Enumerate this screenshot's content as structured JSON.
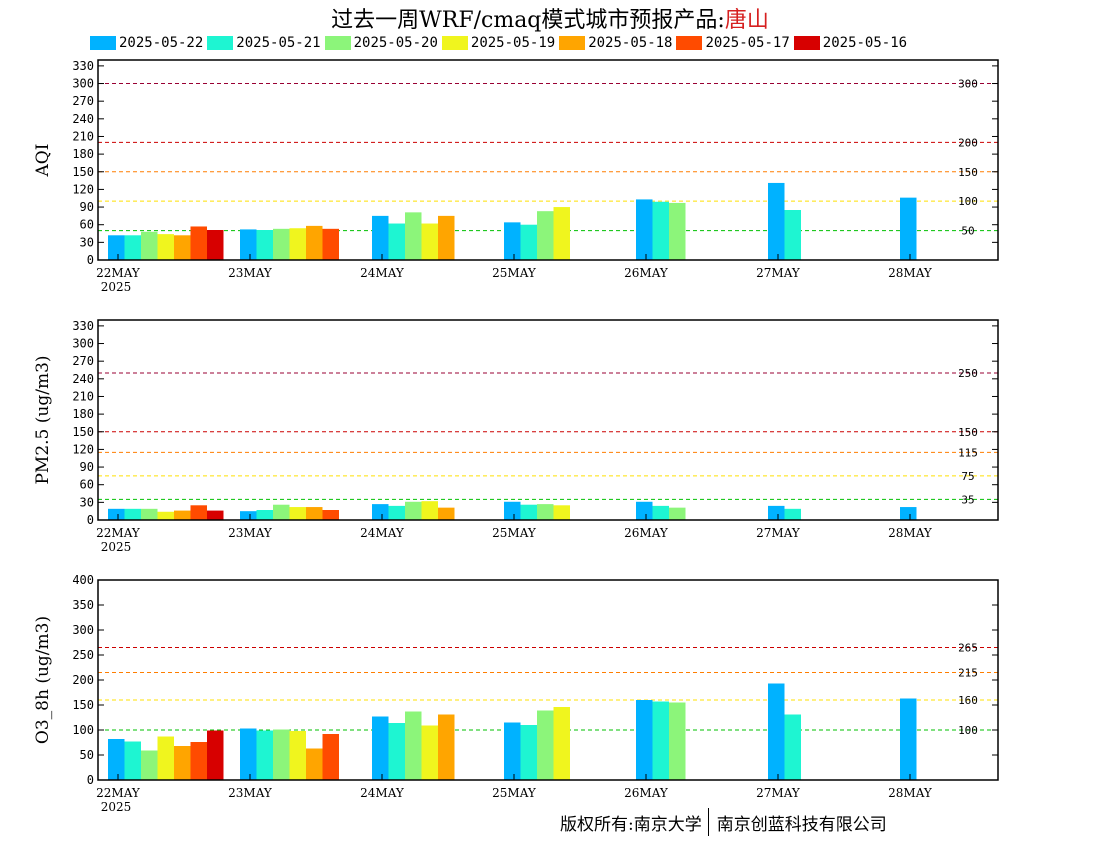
{
  "title": {
    "main": "过去一周WRF/cmaq模式城市预报产品:",
    "city": "唐山",
    "city_color": "#d62020"
  },
  "legend": [
    {
      "label": "2025-05-22",
      "color": "#00b2ff"
    },
    {
      "label": "2025-05-21",
      "color": "#1ef5d2"
    },
    {
      "label": "2025-05-20",
      "color": "#8cf57a"
    },
    {
      "label": "2025-05-19",
      "color": "#f0f51e"
    },
    {
      "label": "2025-05-18",
      "color": "#ffa500"
    },
    {
      "label": "2025-05-17",
      "color": "#ff4b00"
    },
    {
      "label": "2025-05-16",
      "color": "#d70000"
    }
  ],
  "copyright": {
    "left": "版权所有:南京大学",
    "right": "南京创蓝科技有限公司"
  },
  "chart_data": [
    {
      "type": "bar",
      "ylabel": "AQI",
      "ylim": [
        0,
        340
      ],
      "yticks": [
        0,
        30,
        60,
        90,
        120,
        150,
        180,
        210,
        240,
        270,
        300,
        330
      ],
      "categories": [
        "22MAY",
        "23MAY",
        "24MAY",
        "25MAY",
        "26MAY",
        "27MAY",
        "28MAY"
      ],
      "year_label": "2025",
      "thresholds": [
        {
          "value": 300,
          "label": "300",
          "color": "#990033"
        },
        {
          "value": 200,
          "label": "200",
          "color": "#cc0000"
        },
        {
          "value": 150,
          "label": "150",
          "color": "#ff7e00"
        },
        {
          "value": 100,
          "label": "100",
          "color": "#ffe000"
        },
        {
          "value": 50,
          "label": "50",
          "color": "#00c000"
        }
      ],
      "series": [
        {
          "name": "2025-05-22",
          "values": [
            42,
            52,
            75,
            64,
            103,
            131,
            106
          ]
        },
        {
          "name": "2025-05-21",
          "values": [
            42,
            51,
            62,
            60,
            99,
            85,
            null
          ]
        },
        {
          "name": "2025-05-20",
          "values": [
            48,
            53,
            81,
            83,
            97,
            null,
            null
          ]
        },
        {
          "name": "2025-05-19",
          "values": [
            44,
            54,
            62,
            90,
            null,
            null,
            null
          ]
        },
        {
          "name": "2025-05-18",
          "values": [
            42,
            58,
            75,
            null,
            null,
            null,
            null
          ]
        },
        {
          "name": "2025-05-17",
          "values": [
            57,
            53,
            null,
            null,
            null,
            null,
            null
          ]
        },
        {
          "name": "2025-05-16",
          "values": [
            51,
            null,
            null,
            null,
            null,
            null,
            null
          ]
        }
      ]
    },
    {
      "type": "bar",
      "ylabel": "PM2.5 (ug/m3)",
      "ylim": [
        0,
        340
      ],
      "yticks": [
        0,
        30,
        60,
        90,
        120,
        150,
        180,
        210,
        240,
        270,
        300,
        330
      ],
      "categories": [
        "22MAY",
        "23MAY",
        "24MAY",
        "25MAY",
        "26MAY",
        "27MAY",
        "28MAY"
      ],
      "year_label": "2025",
      "thresholds": [
        {
          "value": 250,
          "label": "250",
          "color": "#990033"
        },
        {
          "value": 150,
          "label": "150",
          "color": "#cc0000"
        },
        {
          "value": 115,
          "label": "115",
          "color": "#ff7e00"
        },
        {
          "value": 75,
          "label": "75",
          "color": "#ffe000"
        },
        {
          "value": 35,
          "label": "35",
          "color": "#00c000"
        }
      ],
      "series": [
        {
          "name": "2025-05-22",
          "values": [
            19,
            15,
            27,
            31,
            31,
            24,
            22
          ]
        },
        {
          "name": "2025-05-21",
          "values": [
            19,
            17,
            24,
            26,
            24,
            19,
            null
          ]
        },
        {
          "name": "2025-05-20",
          "values": [
            19,
            26,
            31,
            27,
            21,
            null,
            null
          ]
        },
        {
          "name": "2025-05-19",
          "values": [
            14,
            22,
            32,
            25,
            null,
            null,
            null
          ]
        },
        {
          "name": "2025-05-18",
          "values": [
            16,
            22,
            21,
            null,
            null,
            null,
            null
          ]
        },
        {
          "name": "2025-05-17",
          "values": [
            25,
            17,
            null,
            null,
            null,
            null,
            null
          ]
        },
        {
          "name": "2025-05-16",
          "values": [
            16,
            null,
            null,
            null,
            null,
            null,
            null
          ]
        }
      ]
    },
    {
      "type": "bar",
      "ylabel": "O3_8h (ug/m3)",
      "ylim": [
        0,
        400
      ],
      "yticks": [
        0,
        50,
        100,
        150,
        200,
        250,
        300,
        350,
        400
      ],
      "categories": [
        "22MAY",
        "23MAY",
        "24MAY",
        "25MAY",
        "26MAY",
        "27MAY",
        "28MAY"
      ],
      "year_label": "2025",
      "thresholds": [
        {
          "value": 265,
          "label": "265",
          "color": "#cc0000"
        },
        {
          "value": 215,
          "label": "215",
          "color": "#ff7e00"
        },
        {
          "value": 160,
          "label": "160",
          "color": "#ffe000"
        },
        {
          "value": 100,
          "label": "100",
          "color": "#00c000"
        }
      ],
      "series": [
        {
          "name": "2025-05-22",
          "values": [
            82,
            103,
            127,
            115,
            160,
            193,
            163
          ]
        },
        {
          "name": "2025-05-21",
          "values": [
            77,
            99,
            114,
            110,
            157,
            131,
            null
          ]
        },
        {
          "name": "2025-05-20",
          "values": [
            59,
            101,
            137,
            139,
            155,
            null,
            null
          ]
        },
        {
          "name": "2025-05-19",
          "values": [
            87,
            98,
            109,
            146,
            null,
            null,
            null
          ]
        },
        {
          "name": "2025-05-18",
          "values": [
            68,
            63,
            131,
            null,
            null,
            null,
            null
          ]
        },
        {
          "name": "2025-05-17",
          "values": [
            76,
            92,
            null,
            null,
            null,
            null,
            null
          ]
        },
        {
          "name": "2025-05-16",
          "values": [
            99,
            null,
            null,
            null,
            null,
            null,
            null
          ]
        }
      ]
    }
  ]
}
